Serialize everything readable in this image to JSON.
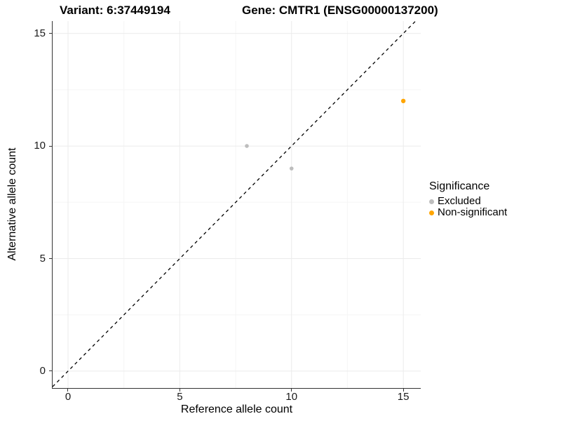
{
  "header": {
    "variant_title": "Variant: 6:37449194",
    "gene_title": "Gene: CMTR1 (ENSG00000137200)"
  },
  "axes": {
    "x": {
      "label": "Reference allele count"
    },
    "y": {
      "label": "Alternative allele count"
    }
  },
  "legend": {
    "title": "Significance",
    "items": [
      {
        "label": "Excluded",
        "color": "#bdbdbd"
      },
      {
        "label": "Non-significant",
        "color": "#ffa500"
      }
    ]
  },
  "chart_data": {
    "type": "scatter",
    "title": "Variant: 6:37449194    Gene: CMTR1 (ENSG00000137200)",
    "xlabel": "Reference allele count",
    "ylabel": "Alternative allele count",
    "xlim": [
      -0.69,
      15.78
    ],
    "ylim": [
      -0.75,
      15.55
    ],
    "x_ticks": [
      0,
      5,
      10,
      15
    ],
    "y_ticks": [
      0,
      5,
      10,
      15
    ],
    "x_minor_ticks": [
      2.5,
      7.5,
      12.5
    ],
    "y_minor_ticks": [
      2.5,
      7.5,
      12.5
    ],
    "grid": "major+minor",
    "legend_position": "right",
    "legend_title": "Significance",
    "series": [
      {
        "name": "Excluded",
        "color": "#bdbdbd",
        "point_radius": 2.8,
        "points": [
          [
            8,
            10
          ],
          [
            10,
            9
          ]
        ]
      },
      {
        "name": "Non-significant",
        "color": "#ffa500",
        "point_radius": 3.2,
        "points": [
          [
            15,
            12
          ]
        ]
      }
    ],
    "reference_line": {
      "type": "y=x",
      "style": "dashed",
      "color": "#000000"
    },
    "colors": {
      "grid_major": "#ebebeb",
      "grid_minor": "#f5f5f5",
      "axis_line": "#333333"
    }
  }
}
